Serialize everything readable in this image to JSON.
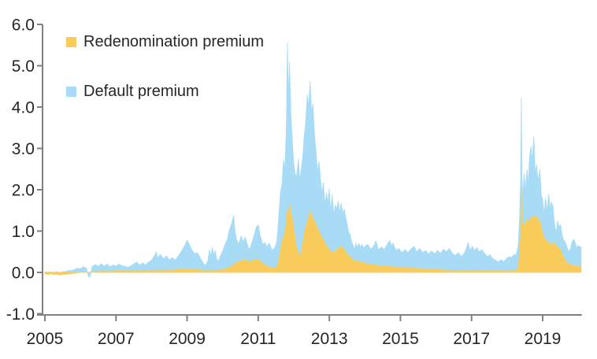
{
  "chart_data": {
    "type": "area",
    "stacked": true,
    "title": "",
    "xlabel": "",
    "ylabel": "",
    "grid": false,
    "background_color": "#ffffff",
    "axis_color": "#808080",
    "text_color": "#262626",
    "legend_position": "top-left",
    "legend": [
      {
        "label": "Redenomination premium",
        "color": "#F9CB5B"
      },
      {
        "label": "Default premium",
        "color": "#A8DCF6"
      }
    ],
    "y_axis": {
      "min": -1.0,
      "max": 6.0,
      "tick_values": [
        6,
        5,
        4,
        3,
        2,
        1,
        0,
        -1
      ],
      "tick_labels": [
        "6.0",
        "5.0",
        "4.0",
        "3.0",
        "2.0",
        "1.0",
        "0.0",
        "-1.0"
      ]
    },
    "x_axis": {
      "min": 2005,
      "max": 2020.08,
      "tick_values": [
        2005,
        2007,
        2009,
        2011,
        2013,
        2015,
        2017,
        2019
      ],
      "tick_labels": [
        "2005",
        "2007",
        "2009",
        "2011",
        "2013",
        "2015",
        "2017",
        "2019"
      ]
    },
    "columns": [
      "year",
      "redenomination_premium",
      "default_premium"
    ],
    "points": [
      [
        2005.0,
        -0.03,
        0.04
      ],
      [
        2005.08,
        -0.05,
        0.06
      ],
      [
        2005.17,
        -0.03,
        0.04
      ],
      [
        2005.25,
        -0.05,
        0.05
      ],
      [
        2005.33,
        -0.04,
        0.06
      ],
      [
        2005.42,
        -0.06,
        0.05
      ],
      [
        2005.5,
        -0.04,
        0.06
      ],
      [
        2005.58,
        -0.05,
        0.07
      ],
      [
        2005.67,
        -0.04,
        0.09
      ],
      [
        2005.75,
        -0.03,
        0.07
      ],
      [
        2005.83,
        -0.02,
        0.09
      ],
      [
        2005.92,
        -0.01,
        0.11
      ],
      [
        2006.0,
        0.01,
        0.08
      ],
      [
        2006.08,
        0.01,
        0.13
      ],
      [
        2006.17,
        0.02,
        0.08
      ],
      [
        2006.21,
        0.0,
        -0.05
      ],
      [
        2006.25,
        0.0,
        -0.13
      ],
      [
        2006.29,
        0.01,
        -0.04
      ],
      [
        2006.33,
        0.02,
        0.12
      ],
      [
        2006.42,
        0.02,
        0.17
      ],
      [
        2006.5,
        0.02,
        0.12
      ],
      [
        2006.58,
        0.03,
        0.18
      ],
      [
        2006.67,
        0.02,
        0.13
      ],
      [
        2006.75,
        0.03,
        0.17
      ],
      [
        2006.83,
        0.02,
        0.12
      ],
      [
        2006.92,
        0.03,
        0.15
      ],
      [
        2007.0,
        0.03,
        0.12
      ],
      [
        2007.08,
        0.03,
        0.17
      ],
      [
        2007.17,
        0.03,
        0.13
      ],
      [
        2007.25,
        0.04,
        0.11
      ],
      [
        2007.33,
        0.03,
        0.09
      ],
      [
        2007.42,
        0.04,
        0.12
      ],
      [
        2007.5,
        0.04,
        0.16
      ],
      [
        2007.58,
        0.04,
        0.21
      ],
      [
        2007.67,
        0.04,
        0.13
      ],
      [
        2007.75,
        0.05,
        0.18
      ],
      [
        2007.83,
        0.04,
        0.14
      ],
      [
        2007.92,
        0.05,
        0.2
      ],
      [
        2008.0,
        0.05,
        0.25
      ],
      [
        2008.08,
        0.05,
        0.35
      ],
      [
        2008.13,
        0.06,
        0.44
      ],
      [
        2008.17,
        0.05,
        0.3
      ],
      [
        2008.25,
        0.06,
        0.38
      ],
      [
        2008.33,
        0.05,
        0.28
      ],
      [
        2008.42,
        0.06,
        0.34
      ],
      [
        2008.5,
        0.05,
        0.25
      ],
      [
        2008.58,
        0.06,
        0.3
      ],
      [
        2008.67,
        0.06,
        0.24
      ],
      [
        2008.75,
        0.07,
        0.33
      ],
      [
        2008.83,
        0.07,
        0.43
      ],
      [
        2008.92,
        0.08,
        0.55
      ],
      [
        2009.0,
        0.08,
        0.7
      ],
      [
        2009.06,
        0.08,
        0.6
      ],
      [
        2009.13,
        0.07,
        0.48
      ],
      [
        2009.21,
        0.07,
        0.38
      ],
      [
        2009.29,
        0.06,
        0.42
      ],
      [
        2009.38,
        0.06,
        0.28
      ],
      [
        2009.46,
        0.05,
        0.17
      ],
      [
        2009.52,
        0.05,
        0.12
      ],
      [
        2009.58,
        0.05,
        0.22
      ],
      [
        2009.63,
        0.05,
        0.5
      ],
      [
        2009.67,
        0.05,
        0.33
      ],
      [
        2009.71,
        0.06,
        0.55
      ],
      [
        2009.75,
        0.05,
        0.35
      ],
      [
        2009.79,
        0.06,
        0.48
      ],
      [
        2009.83,
        0.05,
        0.28
      ],
      [
        2009.88,
        0.05,
        0.22
      ],
      [
        2009.94,
        0.06,
        0.35
      ],
      [
        2010.0,
        0.07,
        0.45
      ],
      [
        2010.06,
        0.08,
        0.58
      ],
      [
        2010.13,
        0.1,
        0.7
      ],
      [
        2010.19,
        0.12,
        0.92
      ],
      [
        2010.25,
        0.15,
        1.02
      ],
      [
        2010.31,
        0.18,
        1.2
      ],
      [
        2010.35,
        0.22,
        0.75
      ],
      [
        2010.4,
        0.25,
        0.52
      ],
      [
        2010.46,
        0.25,
        0.45
      ],
      [
        2010.52,
        0.28,
        0.6
      ],
      [
        2010.58,
        0.3,
        0.44
      ],
      [
        2010.63,
        0.3,
        0.56
      ],
      [
        2010.69,
        0.28,
        0.4
      ],
      [
        2010.75,
        0.26,
        0.28
      ],
      [
        2010.81,
        0.27,
        0.42
      ],
      [
        2010.88,
        0.3,
        0.58
      ],
      [
        2010.94,
        0.32,
        0.76
      ],
      [
        2011.0,
        0.3,
        0.85
      ],
      [
        2011.06,
        0.28,
        0.6
      ],
      [
        2011.13,
        0.22,
        0.46
      ],
      [
        2011.19,
        0.18,
        0.54
      ],
      [
        2011.25,
        0.15,
        0.47
      ],
      [
        2011.31,
        0.13,
        0.58
      ],
      [
        2011.38,
        0.12,
        0.43
      ],
      [
        2011.44,
        0.1,
        0.47
      ],
      [
        2011.5,
        0.12,
        0.54
      ],
      [
        2011.54,
        0.15,
        0.73
      ],
      [
        2011.58,
        0.3,
        1.08
      ],
      [
        2011.63,
        0.55,
        1.43
      ],
      [
        2011.67,
        0.75,
        1.38
      ],
      [
        2011.71,
        0.85,
        1.88
      ],
      [
        2011.75,
        0.95,
        1.53
      ],
      [
        2011.79,
        1.2,
        2.28
      ],
      [
        2011.82,
        1.5,
        4.06
      ],
      [
        2011.85,
        1.35,
        2.85
      ],
      [
        2011.88,
        1.69,
        3.41
      ],
      [
        2011.92,
        1.45,
        2.33
      ],
      [
        2011.96,
        1.3,
        1.88
      ],
      [
        2012.0,
        1.1,
        1.53
      ],
      [
        2012.04,
        0.8,
        1.58
      ],
      [
        2012.08,
        0.6,
        1.73
      ],
      [
        2012.13,
        0.45,
        2.3
      ],
      [
        2012.17,
        0.4,
        1.83
      ],
      [
        2012.21,
        0.5,
        2.0
      ],
      [
        2012.25,
        0.7,
        2.08
      ],
      [
        2012.29,
        0.9,
        2.38
      ],
      [
        2012.33,
        1.1,
        2.48
      ],
      [
        2012.38,
        1.2,
        3.1
      ],
      [
        2012.42,
        1.35,
        2.63
      ],
      [
        2012.46,
        1.48,
        3.15
      ],
      [
        2012.5,
        1.4,
        2.48
      ],
      [
        2012.54,
        1.3,
        2.78
      ],
      [
        2012.58,
        1.25,
        2.13
      ],
      [
        2012.63,
        1.15,
        1.73
      ],
      [
        2012.67,
        1.05,
        1.38
      ],
      [
        2012.71,
        1.0,
        1.68
      ],
      [
        2012.75,
        0.9,
        1.38
      ],
      [
        2012.79,
        0.85,
        1.03
      ],
      [
        2012.83,
        0.8,
        1.38
      ],
      [
        2012.88,
        0.7,
        0.93
      ],
      [
        2012.92,
        0.65,
        1.28
      ],
      [
        2012.96,
        0.6,
        1.08
      ],
      [
        2013.0,
        0.55,
        1.48
      ],
      [
        2013.04,
        0.5,
        0.98
      ],
      [
        2013.08,
        0.52,
        1.36
      ],
      [
        2013.13,
        0.48,
        0.9
      ],
      [
        2013.17,
        0.5,
        1.13
      ],
      [
        2013.21,
        0.55,
        0.98
      ],
      [
        2013.25,
        0.6,
        1.13
      ],
      [
        2013.29,
        0.55,
        0.88
      ],
      [
        2013.33,
        0.65,
        1.03
      ],
      [
        2013.38,
        0.6,
        0.83
      ],
      [
        2013.42,
        0.55,
        0.98
      ],
      [
        2013.46,
        0.5,
        0.83
      ],
      [
        2013.5,
        0.45,
        0.73
      ],
      [
        2013.54,
        0.4,
        0.58
      ],
      [
        2013.58,
        0.38,
        0.55
      ],
      [
        2013.63,
        0.35,
        0.38
      ],
      [
        2013.67,
        0.3,
        0.36
      ],
      [
        2013.71,
        0.28,
        0.28
      ],
      [
        2013.75,
        0.28,
        0.43
      ],
      [
        2013.79,
        0.26,
        0.34
      ],
      [
        2013.83,
        0.27,
        0.43
      ],
      [
        2013.88,
        0.25,
        0.36
      ],
      [
        2013.92,
        0.25,
        0.43
      ],
      [
        2013.96,
        0.24,
        0.34
      ],
      [
        2014.0,
        0.22,
        0.41
      ],
      [
        2014.08,
        0.2,
        0.48
      ],
      [
        2014.17,
        0.2,
        0.36
      ],
      [
        2014.25,
        0.18,
        0.46
      ],
      [
        2014.31,
        0.18,
        0.58
      ],
      [
        2014.38,
        0.17,
        0.38
      ],
      [
        2014.46,
        0.16,
        0.46
      ],
      [
        2014.54,
        0.15,
        0.4
      ],
      [
        2014.63,
        0.15,
        0.53
      ],
      [
        2014.7,
        0.14,
        0.64
      ],
      [
        2014.75,
        0.14,
        0.5
      ],
      [
        2014.79,
        0.13,
        0.58
      ],
      [
        2014.88,
        0.13,
        0.4
      ],
      [
        2014.96,
        0.12,
        0.46
      ],
      [
        2015.04,
        0.12,
        0.36
      ],
      [
        2015.13,
        0.11,
        0.44
      ],
      [
        2015.21,
        0.11,
        0.37
      ],
      [
        2015.29,
        0.1,
        0.46
      ],
      [
        2015.38,
        0.1,
        0.53
      ],
      [
        2015.46,
        0.1,
        0.4
      ],
      [
        2015.54,
        0.09,
        0.49
      ],
      [
        2015.63,
        0.09,
        0.39
      ],
      [
        2015.71,
        0.08,
        0.45
      ],
      [
        2015.79,
        0.08,
        0.36
      ],
      [
        2015.88,
        0.08,
        0.44
      ],
      [
        2015.96,
        0.07,
        0.38
      ],
      [
        2016.04,
        0.07,
        0.46
      ],
      [
        2016.13,
        0.06,
        0.4
      ],
      [
        2016.21,
        0.06,
        0.5
      ],
      [
        2016.29,
        0.06,
        0.44
      ],
      [
        2016.38,
        0.05,
        0.53
      ],
      [
        2016.46,
        0.05,
        0.41
      ],
      [
        2016.54,
        0.05,
        0.36
      ],
      [
        2016.63,
        0.05,
        0.43
      ],
      [
        2016.71,
        0.04,
        0.34
      ],
      [
        2016.79,
        0.04,
        0.42
      ],
      [
        2016.85,
        0.04,
        0.53
      ],
      [
        2016.9,
        0.04,
        0.68
      ],
      [
        2016.96,
        0.04,
        0.5
      ],
      [
        2017.02,
        0.05,
        0.58
      ],
      [
        2017.08,
        0.05,
        0.48
      ],
      [
        2017.15,
        0.05,
        0.55
      ],
      [
        2017.21,
        0.05,
        0.45
      ],
      [
        2017.29,
        0.05,
        0.5
      ],
      [
        2017.38,
        0.04,
        0.4
      ],
      [
        2017.46,
        0.04,
        0.34
      ],
      [
        2017.52,
        0.04,
        0.39
      ],
      [
        2017.58,
        0.04,
        0.3
      ],
      [
        2017.67,
        0.04,
        0.26
      ],
      [
        2017.75,
        0.03,
        0.22
      ],
      [
        2017.83,
        0.03,
        0.28
      ],
      [
        2017.9,
        0.03,
        0.23
      ],
      [
        2017.98,
        0.04,
        0.3
      ],
      [
        2018.06,
        0.04,
        0.34
      ],
      [
        2018.13,
        0.05,
        0.31
      ],
      [
        2018.19,
        0.05,
        0.38
      ],
      [
        2018.25,
        0.06,
        0.36
      ],
      [
        2018.31,
        0.1,
        0.53
      ],
      [
        2018.35,
        0.45,
        0.88
      ],
      [
        2018.38,
        0.9,
        1.33
      ],
      [
        2018.4,
        2.07,
        2.16
      ],
      [
        2018.42,
        1.3,
        1.0
      ],
      [
        2018.44,
        1.1,
        0.7
      ],
      [
        2018.48,
        1.2,
        1.2
      ],
      [
        2018.52,
        1.15,
        0.85
      ],
      [
        2018.56,
        1.3,
        1.2
      ],
      [
        2018.6,
        1.2,
        0.95
      ],
      [
        2018.63,
        1.25,
        1.55
      ],
      [
        2018.67,
        1.35,
        1.7
      ],
      [
        2018.71,
        1.25,
        1.45
      ],
      [
        2018.75,
        1.4,
        1.9
      ],
      [
        2018.79,
        1.3,
        1.1
      ],
      [
        2018.83,
        1.35,
        1.25
      ],
      [
        2018.87,
        1.3,
        0.9
      ],
      [
        2018.92,
        1.25,
        1.25
      ],
      [
        2018.96,
        1.1,
        0.8
      ],
      [
        2019.0,
        0.95,
        0.8
      ],
      [
        2019.04,
        0.85,
        0.55
      ],
      [
        2019.08,
        0.8,
        1.0
      ],
      [
        2019.13,
        0.75,
        0.75
      ],
      [
        2019.17,
        0.72,
        1.18
      ],
      [
        2019.21,
        0.7,
        0.85
      ],
      [
        2019.25,
        0.68,
        1.02
      ],
      [
        2019.29,
        0.7,
        0.9
      ],
      [
        2019.33,
        0.72,
        0.48
      ],
      [
        2019.38,
        0.65,
        0.3
      ],
      [
        2019.42,
        0.62,
        0.63
      ],
      [
        2019.46,
        0.6,
        0.5
      ],
      [
        2019.5,
        0.55,
        0.6
      ],
      [
        2019.54,
        0.45,
        0.5
      ],
      [
        2019.58,
        0.38,
        0.42
      ],
      [
        2019.63,
        0.32,
        0.43
      ],
      [
        2019.67,
        0.25,
        0.4
      ],
      [
        2019.71,
        0.22,
        0.33
      ],
      [
        2019.75,
        0.2,
        0.3
      ],
      [
        2019.79,
        0.18,
        0.42
      ],
      [
        2019.83,
        0.18,
        0.57
      ],
      [
        2019.88,
        0.17,
        0.63
      ],
      [
        2019.92,
        0.16,
        0.54
      ],
      [
        2019.96,
        0.15,
        0.45
      ],
      [
        2020.0,
        0.15,
        0.5
      ],
      [
        2020.04,
        0.14,
        0.48
      ],
      [
        2020.08,
        0.15,
        0.47
      ]
    ]
  }
}
